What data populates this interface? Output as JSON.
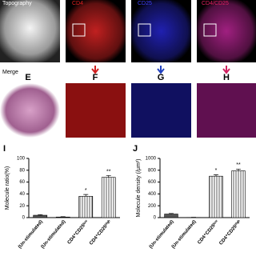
{
  "image_labels": {
    "topography": "Topography",
    "cd4": "CD4",
    "cd25": "CD25",
    "merge_top": "CD4/CD25",
    "merge": "Merge",
    "e": "E",
    "f": "F",
    "g": "G",
    "h": "H"
  },
  "chart_data": [
    {
      "type": "bar",
      "panel": "I",
      "ylabel": "Molecule ratio(%)",
      "categories": [
        "(Un-stimulated)",
        "(Un-stimulated)",
        "CD4⁺CD25ˡᵒʷ",
        "CD4⁺CD25ʰⁱᵍʰ"
      ],
      "values": [
        4,
        1,
        36,
        68
      ],
      "errors": [
        1,
        0.5,
        3,
        3
      ],
      "annotations": [
        null,
        null,
        "*",
        "**"
      ],
      "bar_styles": [
        "solid",
        "solid",
        "hatched",
        "hatched"
      ],
      "color": "#555",
      "ylim": [
        0,
        100
      ],
      "yticks": [
        0,
        20,
        40,
        60,
        80,
        100
      ]
    },
    {
      "type": "bar",
      "panel": "J",
      "ylabel": "Molecule density (/μm²)",
      "categories": [
        "(Un-stimulated)",
        "(Un-stimulated)",
        "CD4⁺CD25ˡᵒʷ",
        "CD4⁺CD25ʰⁱᵍʰ"
      ],
      "values": [
        60,
        3,
        700,
        790
      ],
      "errors": [
        10,
        2,
        25,
        30
      ],
      "annotations": [
        null,
        null,
        "*",
        "**"
      ],
      "bar_styles": [
        "solid",
        "solid",
        "hatched",
        "hatched"
      ],
      "color": "#555",
      "ylim": [
        0,
        1000
      ],
      "yticks": [
        0,
        200,
        400,
        600,
        800,
        1000
      ]
    }
  ]
}
